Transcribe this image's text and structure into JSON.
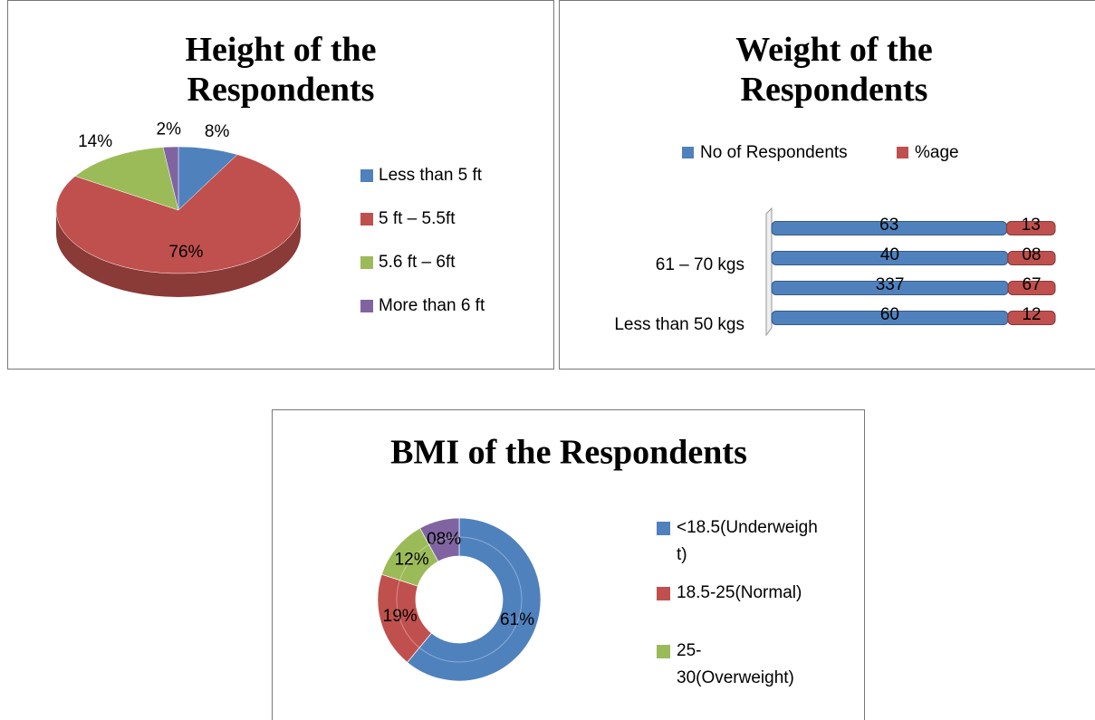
{
  "chart_data": [
    {
      "type": "pie",
      "title": "Height of the Respondents",
      "categories": [
        "Less than 5 ft",
        "5 ft  – 5.5ft",
        "5.6 ft – 6ft",
        "More than  6 ft"
      ],
      "values": [
        8,
        76,
        14,
        2
      ],
      "value_labels": [
        "8%",
        "76%",
        "14%",
        "2%"
      ],
      "colors": [
        "#4f81bd",
        "#c0504d",
        "#9bbb59",
        "#8064a2"
      ],
      "legend": "right"
    },
    {
      "type": "bar",
      "orientation": "horizontal",
      "stack": "percent",
      "title": "Weight of the Respondents",
      "categories": [
        "Less than 50 kgs",
        null,
        "61 – 70 kgs",
        null
      ],
      "series": [
        {
          "name": "No of Respondents",
          "color": "#4f81bd",
          "values": [
            60,
            337,
            40,
            63
          ]
        },
        {
          "name": "%age",
          "color": "#c0504d",
          "values": [
            12,
            67,
            8,
            13
          ],
          "value_labels": [
            "12",
            "67",
            "08",
            "13"
          ]
        }
      ],
      "legend": "top"
    },
    {
      "type": "donut",
      "title": "BMI of the Respondents",
      "categories": [
        "<18.5(Underweight)",
        "18.5-25(Normal)",
        "25-30(Overweight)",
        null
      ],
      "values": [
        61,
        19,
        12,
        8
      ],
      "value_labels": [
        "61%",
        "19%",
        "12%",
        "08%"
      ],
      "colors": [
        "#4f81bd",
        "#c0504d",
        "#9bbb59",
        "#8064a2"
      ],
      "legend": "right"
    }
  ]
}
